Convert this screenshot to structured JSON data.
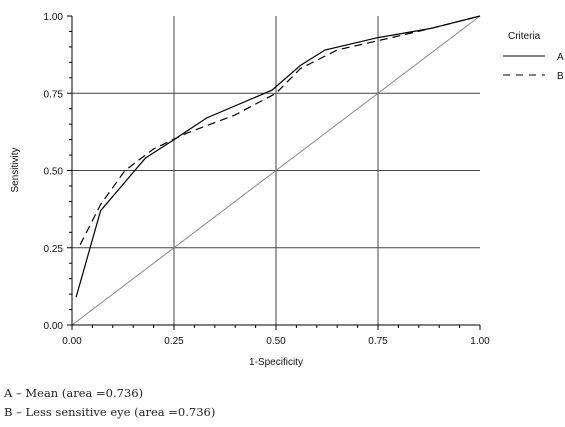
{
  "chart_data": {
    "type": "line",
    "xlabel": "1-Specificity",
    "ylabel": "Sensitivity",
    "xlim": [
      0,
      1
    ],
    "ylim": [
      0,
      1
    ],
    "x_ticks": [
      "0.00",
      "0.25",
      "0.50",
      "0.75",
      "1.00"
    ],
    "y_ticks": [
      "0.00",
      "0.25",
      "0.50",
      "0.75",
      "1.00"
    ],
    "grid": true,
    "legend": {
      "title": "Criteria",
      "placement": "right",
      "entries": [
        "A",
        "B"
      ]
    },
    "series": [
      {
        "name": "A",
        "style": "solid",
        "points": [
          [
            0.01,
            0.09
          ],
          [
            0.07,
            0.37
          ],
          [
            0.18,
            0.54
          ],
          [
            0.25,
            0.6
          ],
          [
            0.33,
            0.67
          ],
          [
            0.49,
            0.76
          ],
          [
            0.56,
            0.84
          ],
          [
            0.62,
            0.89
          ],
          [
            0.75,
            0.93
          ],
          [
            0.88,
            0.96
          ],
          [
            1.0,
            1.0
          ]
        ]
      },
      {
        "name": "B",
        "style": "dashed",
        "points": [
          [
            0.02,
            0.26
          ],
          [
            0.07,
            0.39
          ],
          [
            0.13,
            0.5
          ],
          [
            0.2,
            0.57
          ],
          [
            0.28,
            0.62
          ],
          [
            0.33,
            0.645
          ],
          [
            0.4,
            0.68
          ],
          [
            0.5,
            0.75
          ],
          [
            0.56,
            0.83
          ],
          [
            0.65,
            0.89
          ],
          [
            0.75,
            0.92
          ],
          [
            0.88,
            0.96
          ],
          [
            1.0,
            1.0
          ]
        ]
      }
    ],
    "reference_line": [
      [
        0,
        0
      ],
      [
        1,
        1
      ]
    ],
    "colors": {
      "lines": "#000000",
      "grid": "#444444",
      "diagonal": "#888888"
    }
  },
  "captions": [
    "A – Mean (area =0.736)",
    "B – Less sensitive eye (area =0.736)"
  ]
}
